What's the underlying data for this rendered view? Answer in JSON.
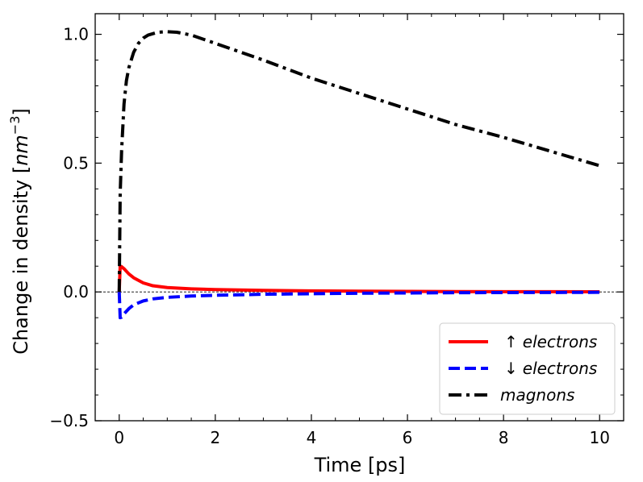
{
  "chart_data": {
    "type": "line",
    "xlabel": "Time [ps]",
    "ylabel": "Change in density [nm⁻³]",
    "ylabel_main": "Change in density [",
    "ylabel_unit": "nm",
    "ylabel_exponent": "−3",
    "ylabel_close": "]",
    "xlim": [
      -0.5,
      10.5
    ],
    "ylim": [
      -0.5,
      1.08
    ],
    "x_ticks": [
      0,
      2,
      4,
      6,
      8,
      10
    ],
    "x_tick_labels": [
      "0",
      "2",
      "4",
      "6",
      "8",
      "10"
    ],
    "y_ticks": [
      -0.5,
      0.0,
      0.5,
      1.0
    ],
    "y_tick_labels": [
      "−0.5",
      "0.0",
      "0.5",
      "1.0"
    ],
    "zero_line": true,
    "grid": false,
    "legend_position": "lower-right",
    "series": [
      {
        "name": "↑ electrons",
        "arrow": "↑",
        "label": "electrons",
        "color": "#ff0000",
        "style": "solid",
        "x": [
          0,
          0.02,
          0.05,
          0.1,
          0.2,
          0.3,
          0.5,
          0.7,
          1.0,
          1.5,
          2,
          3,
          4,
          5,
          6,
          7,
          8,
          9,
          10
        ],
        "y": [
          0,
          0.1,
          0.098,
          0.09,
          0.07,
          0.055,
          0.035,
          0.024,
          0.017,
          0.012,
          0.009,
          0.006,
          0.004,
          0.003,
          0.002,
          0.0015,
          0.001,
          0.0008,
          0.0005
        ]
      },
      {
        "name": "↓ electrons",
        "arrow": "↓",
        "label": "electrons",
        "color": "#0000ff",
        "style": "dashed",
        "x": [
          0,
          0.02,
          0.05,
          0.1,
          0.2,
          0.3,
          0.5,
          0.7,
          1.0,
          1.5,
          2,
          3,
          4,
          5,
          6,
          7,
          8,
          9,
          10
        ],
        "y": [
          0,
          -0.1,
          -0.098,
          -0.085,
          -0.065,
          -0.05,
          -0.035,
          -0.027,
          -0.021,
          -0.016,
          -0.013,
          -0.009,
          -0.007,
          -0.005,
          -0.004,
          -0.003,
          -0.0025,
          -0.002,
          -0.0015
        ]
      },
      {
        "name": "magnons",
        "arrow": "",
        "label": "magnons",
        "color": "#000000",
        "style": "dashdot",
        "x": [
          0,
          0.02,
          0.05,
          0.1,
          0.15,
          0.2,
          0.3,
          0.4,
          0.5,
          0.6,
          0.8,
          1.0,
          1.2,
          1.5,
          2,
          3,
          4,
          5,
          6,
          7,
          8,
          9,
          10
        ],
        "y": [
          0,
          0.38,
          0.55,
          0.73,
          0.82,
          0.87,
          0.93,
          0.965,
          0.985,
          0.997,
          1.008,
          1.01,
          1.008,
          0.997,
          0.965,
          0.9,
          0.83,
          0.77,
          0.71,
          0.65,
          0.6,
          0.545,
          0.49
        ]
      }
    ]
  }
}
